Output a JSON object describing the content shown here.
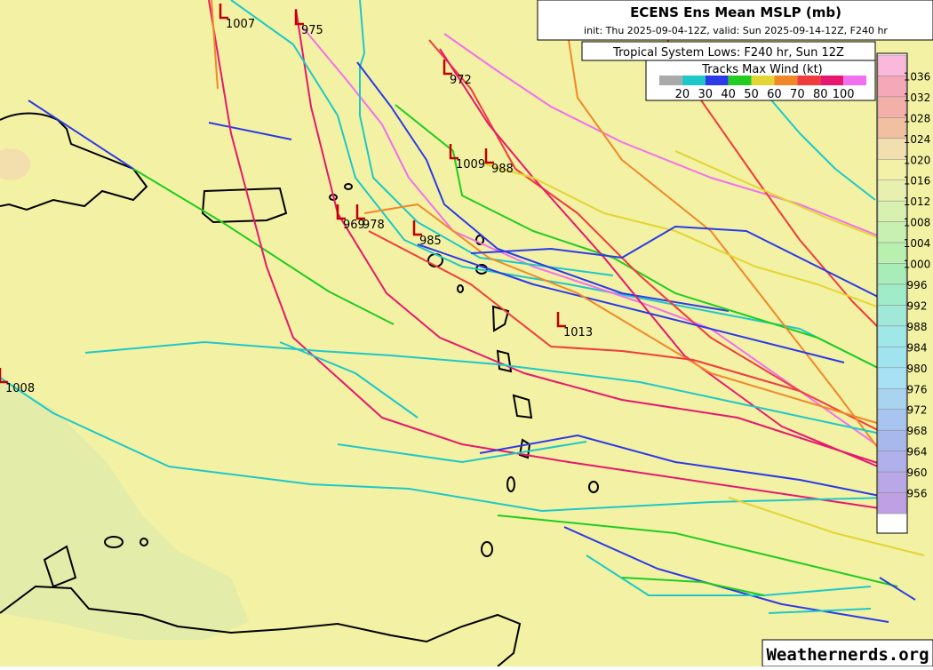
{
  "header": {
    "title": "ECENS Ens Mean MSLP (mb)",
    "subtitle": "init: Thu 2025-09-04-12Z, valid: Sun 2025-09-14-12Z, F240 hr"
  },
  "lows_title": "Tropical System Lows: F240 hr, Sun 12Z",
  "wind_legend": {
    "title": "Tracks Max Wind (kt)",
    "labels": [
      "20",
      "30",
      "40",
      "50",
      "60",
      "70",
      "80",
      "100"
    ]
  },
  "colorbar": {
    "labels": [
      "1036",
      "1032",
      "1028",
      "1024",
      "1020",
      "1016",
      "1012",
      "1008",
      "1004",
      "1000",
      "996",
      "992",
      "988",
      "984",
      "980",
      "976",
      "972",
      "968",
      "964",
      "960",
      "956"
    ]
  },
  "lows": [
    {
      "label": "1007"
    },
    {
      "label": "975"
    },
    {
      "label": "972"
    },
    {
      "label": "1009"
    },
    {
      "label": "988"
    },
    {
      "label": "969"
    },
    {
      "label": "978"
    },
    {
      "label": "985"
    },
    {
      "label": "1013"
    },
    {
      "label": "1008"
    }
  ],
  "credit": "Weathernerds.org"
}
